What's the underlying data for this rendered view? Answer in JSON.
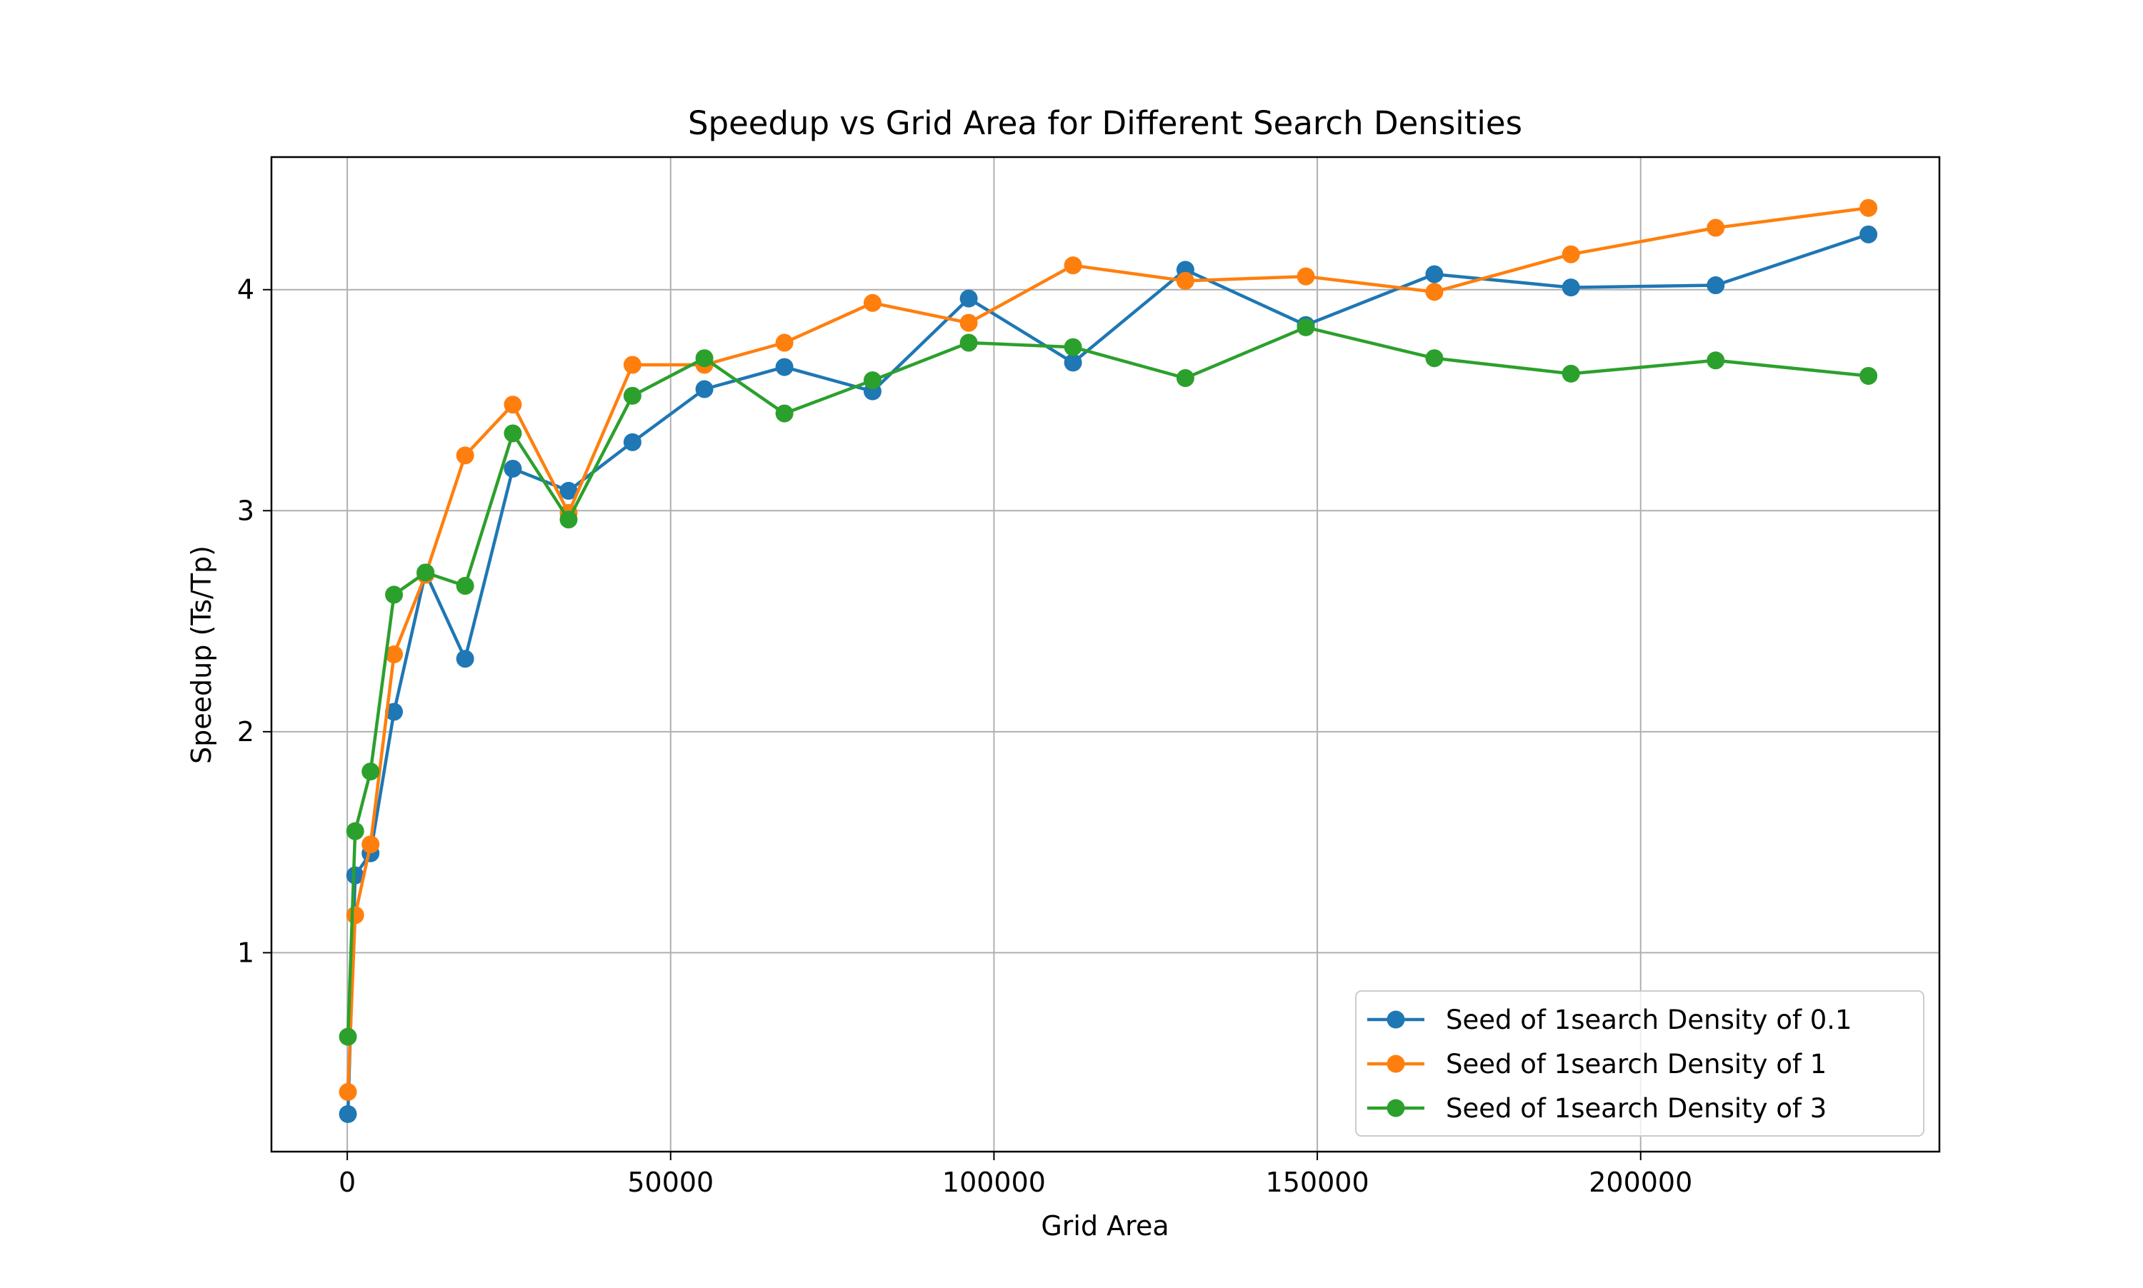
{
  "chart_data": {
    "type": "line",
    "title": "Speedup vs Grid Area for Different Search Densities",
    "xlabel": "Grid Area",
    "ylabel": "Speedup (Ts/Tp)",
    "xlim": [
      -11725,
      246200
    ],
    "ylim": [
      0.1,
      4.6
    ],
    "xticks": [
      0,
      50000,
      100000,
      150000,
      200000
    ],
    "yticks": [
      1,
      2,
      3,
      4
    ],
    "grid": true,
    "legend_position": "lower-right",
    "x": [
      100,
      1225,
      3600,
      7225,
      12100,
      18225,
      25600,
      34225,
      44100,
      55225,
      67600,
      81225,
      96100,
      112225,
      129600,
      148225,
      168100,
      189225,
      211600,
      235225
    ],
    "series": [
      {
        "name": "Seed of 1search Density of 0.1",
        "color": "#1f77b4",
        "values": [
          0.27,
          1.35,
          1.45,
          2.09,
          2.72,
          2.33,
          3.19,
          3.09,
          3.31,
          3.55,
          3.65,
          3.54,
          3.96,
          3.67,
          4.09,
          3.84,
          4.07,
          4.01,
          4.02,
          4.25
        ]
      },
      {
        "name": "Seed of 1search Density of 1",
        "color": "#ff7f0e",
        "values": [
          0.37,
          1.17,
          1.49,
          2.35,
          2.71,
          3.25,
          3.48,
          2.99,
          3.66,
          3.66,
          3.76,
          3.94,
          3.85,
          4.11,
          4.04,
          4.06,
          3.99,
          4.16,
          4.28,
          4.37
        ]
      },
      {
        "name": "Seed of 1search Density of 3",
        "color": "#2ca02c",
        "values": [
          0.62,
          1.55,
          1.82,
          2.62,
          2.72,
          2.66,
          3.35,
          2.96,
          3.52,
          3.69,
          3.44,
          3.59,
          3.76,
          3.74,
          3.6,
          3.83,
          3.69,
          3.62,
          3.68,
          3.61
        ]
      }
    ]
  }
}
